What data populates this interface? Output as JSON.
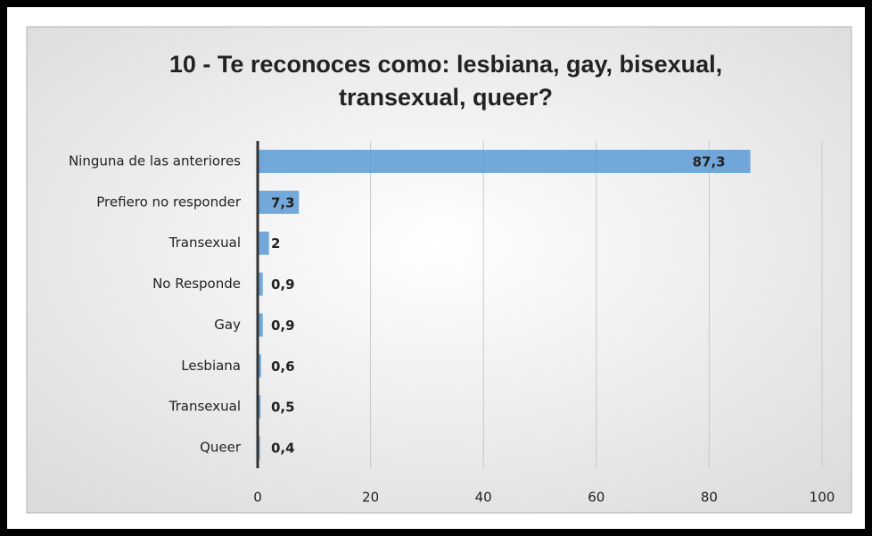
{
  "chart_data": {
    "type": "bar",
    "orientation": "horizontal",
    "title": [
      "10 - Te reconoces como: lesbiana, gay, bisexual,",
      "transexual, queer?"
    ],
    "categories": [
      "Ninguna de las anteriores",
      "Prefiero no responder",
      "Transexual",
      "No Responde",
      "Gay",
      "Lesbiana",
      "Transexual",
      "Queer"
    ],
    "values": [
      87.3,
      7.3,
      2,
      0.9,
      0.9,
      0.6,
      0.5,
      0.4
    ],
    "value_labels": [
      "87,3",
      "7,3",
      "2",
      "0,9",
      "0,9",
      "0,6",
      "0,5",
      "0,4"
    ],
    "color": "#5b9bd5",
    "xlim": [
      0,
      100
    ],
    "xticks": [
      0,
      20,
      40,
      60,
      80,
      100
    ],
    "grid": true
  }
}
